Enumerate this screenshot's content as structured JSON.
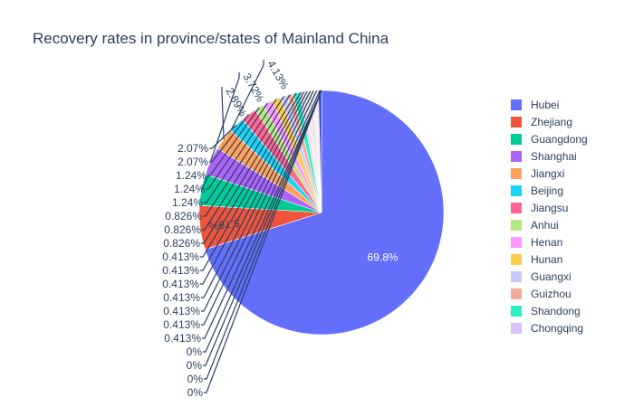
{
  "chart_data": {
    "type": "pie",
    "title": "Recovery rates in province/states of Mainland China",
    "legend_position": "right",
    "slices": [
      {
        "label": "Hubei",
        "value": 69.8,
        "text": "69.8%",
        "color": "#636efa"
      },
      {
        "label": "Zhejiang",
        "value": 5.79,
        "text": "5.79%",
        "color": "#EF553B"
      },
      {
        "label": "Guangdong",
        "value": 4.13,
        "text": "4.13%",
        "color": "#00cc96"
      },
      {
        "label": "Shanghai",
        "value": 3.72,
        "text": "3.72%",
        "color": "#ab63fa"
      },
      {
        "label": "Jiangxi",
        "value": 2.89,
        "text": "2.89%",
        "color": "#FFA15A"
      },
      {
        "label": "Beijing",
        "value": 2.07,
        "text": "2.07%",
        "color": "#19d3f3"
      },
      {
        "label": "Jiangsu",
        "value": 2.07,
        "text": "2.07%",
        "color": "#FF6692"
      },
      {
        "label": "Anhui",
        "value": 1.24,
        "text": "1.24%",
        "color": "#B6E880"
      },
      {
        "label": "Henan",
        "value": 1.24,
        "text": "1.24%",
        "color": "#FF97FF"
      },
      {
        "label": "Hunan",
        "value": 1.24,
        "text": "1.24%",
        "color": "#FECB52"
      },
      {
        "label": "Guangxi",
        "value": 0.826,
        "text": "0.826%",
        "color": "#c6caf9"
      },
      {
        "label": "Guizhou",
        "value": 0.826,
        "text": "0.826%",
        "color": "#f7aa9b"
      },
      {
        "label": "Shandong",
        "value": 0.826,
        "text": "0.826%",
        "color": "#2af0c0"
      },
      {
        "label": "Chongqing",
        "value": 0.413,
        "text": "0.413%",
        "color": "#dcc1fd"
      },
      {
        "label": "",
        "value": 0.413,
        "text": "0.413%",
        "color": "#ffe0cc"
      },
      {
        "label": "",
        "value": 0.413,
        "text": "0.413%",
        "color": "#cdf4fb"
      },
      {
        "label": "",
        "value": 0.413,
        "text": "0.413%",
        "color": "#ffd1de"
      },
      {
        "label": "",
        "value": 0.413,
        "text": "0.413%",
        "color": "#e9f7d9"
      },
      {
        "label": "",
        "value": 0.413,
        "text": "0.413%",
        "color": "#ffe5ff"
      },
      {
        "label": "",
        "value": 0.413,
        "text": "0.413%",
        "color": "#2f45cc"
      },
      {
        "label": "",
        "value": 0,
        "text": "0%",
        "color": "#636efa"
      },
      {
        "label": "",
        "value": 0,
        "text": "0%",
        "color": "#636efa"
      },
      {
        "label": "",
        "value": 0,
        "text": "0%",
        "color": "#636efa"
      },
      {
        "label": "",
        "value": 0,
        "text": "0%",
        "color": "#636efa"
      }
    ],
    "legend": [
      "Hubei",
      "Zhejiang",
      "Guangdong",
      "Shanghai",
      "Jiangxi",
      "Beijing",
      "Jiangsu",
      "Anhui",
      "Henan",
      "Hunan",
      "Guangxi",
      "Guizhou",
      "Shandong",
      "Chongqing"
    ]
  }
}
